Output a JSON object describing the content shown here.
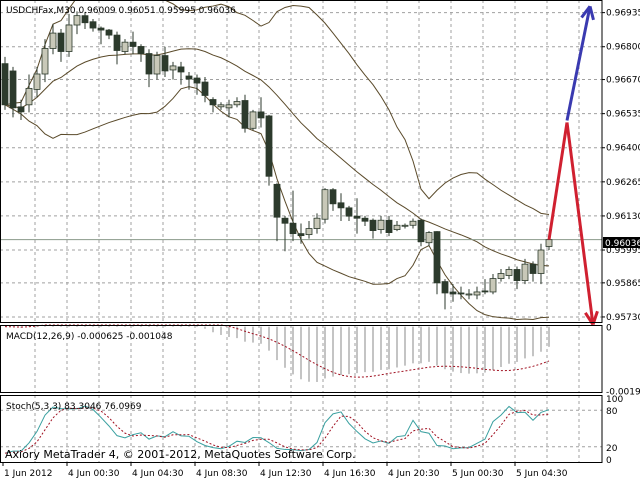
{
  "chart_data": {
    "type": "candlestick",
    "title": "USDCHFax,M30",
    "ohlc_label": "0.96009 0.96051 0.95995 0.96036",
    "current_price": "0.96036",
    "price_ticks": [
      "0.96935",
      "0.96800",
      "0.96670",
      "0.96535",
      "0.96400",
      "0.96265",
      "0.96130",
      "0.95995",
      "0.95865",
      "0.95730"
    ],
    "ylim": [
      0.9571,
      0.96985
    ],
    "time_ticks": [
      "1 Jun 2012",
      "4 Jun 00:30",
      "4 Jun 04:30",
      "4 Jun 08:30",
      "4 Jun 12:30",
      "4 Jun 16:30",
      "4 Jun 20:30",
      "5 Jun 00:30",
      "5 Jun 04:30"
    ],
    "grid": true,
    "colors": {
      "bull": "#c8c8b8",
      "bear": "#2c3a2c",
      "bands": "#5a4a2a",
      "up_arrow": "#3a3ab0",
      "down_arrow": "#d02030",
      "macd_hist": "#b0b0b0",
      "signal": "#a01020",
      "stoch_main": "#3aa0a0",
      "stoch_signal": "#a01020"
    },
    "candles": [
      [
        0.96733,
        0.9676,
        0.9655,
        0.9657
      ],
      [
        0.96704,
        0.9672,
        0.9652,
        0.96558
      ],
      [
        0.96562,
        0.9659,
        0.9651,
        0.96542
      ],
      [
        0.9657,
        0.9669,
        0.9654,
        0.96635
      ],
      [
        0.96631,
        0.9672,
        0.966,
        0.96692
      ],
      [
        0.96692,
        0.9683,
        0.9666,
        0.96793
      ],
      [
        0.96793,
        0.9689,
        0.9677,
        0.96854
      ],
      [
        0.96854,
        0.9687,
        0.9674,
        0.96781
      ],
      [
        0.96781,
        0.9693,
        0.9676,
        0.96886
      ],
      [
        0.96886,
        0.9694,
        0.9685,
        0.96923
      ],
      [
        0.96923,
        0.96935,
        0.9687,
        0.96895
      ],
      [
        0.96899,
        0.9691,
        0.9686,
        0.96874
      ],
      [
        0.96874,
        0.9688,
        0.9681,
        0.96866
      ],
      [
        0.96866,
        0.9687,
        0.9683,
        0.96846
      ],
      [
        0.96846,
        0.9686,
        0.9673,
        0.96785
      ],
      [
        0.96781,
        0.9683,
        0.9677,
        0.96818
      ],
      [
        0.96818,
        0.9686,
        0.9677,
        0.96801
      ],
      [
        0.96801,
        0.9681,
        0.9674,
        0.96773
      ],
      [
        0.96773,
        0.9679,
        0.9664,
        0.96692
      ],
      [
        0.96692,
        0.9678,
        0.9667,
        0.96765
      ],
      [
        0.96765,
        0.968,
        0.9668,
        0.96704
      ],
      [
        0.96708,
        0.9674,
        0.9667,
        0.96724
      ],
      [
        0.9672,
        0.9674,
        0.9665,
        0.967
      ],
      [
        0.96684,
        0.967,
        0.9663,
        0.96672
      ],
      [
        0.96676,
        0.9669,
        0.9661,
        0.96656
      ],
      [
        0.9666,
        0.9668,
        0.9658,
        0.96607
      ],
      [
        0.96591,
        0.966,
        0.9654,
        0.9657
      ],
      [
        0.96562,
        0.9658,
        0.9655,
        0.9657
      ],
      [
        0.96558,
        0.9659,
        0.9652,
        0.9657
      ],
      [
        0.9657,
        0.966,
        0.9656,
        0.96583
      ],
      [
        0.96587,
        0.9661,
        0.9646,
        0.96477
      ],
      [
        0.96477,
        0.9655,
        0.9647,
        0.96542
      ],
      [
        0.96542,
        0.966,
        0.9648,
        0.96518
      ],
      [
        0.96526,
        0.9653,
        0.9625,
        0.96287
      ],
      [
        0.96255,
        0.9626,
        0.9603,
        0.96125
      ],
      [
        0.96121,
        0.9613,
        0.9599,
        0.96101
      ],
      [
        0.96101,
        0.9623,
        0.9603,
        0.9606
      ],
      [
        0.9606,
        0.961,
        0.9602,
        0.96052
      ],
      [
        0.96056,
        0.9611,
        0.9604,
        0.9608
      ],
      [
        0.9608,
        0.9614,
        0.9606,
        0.96121
      ],
      [
        0.96117,
        0.9624,
        0.961,
        0.96234
      ],
      [
        0.96234,
        0.9624,
        0.9615,
        0.96178
      ],
      [
        0.96182,
        0.9622,
        0.9611,
        0.96162
      ],
      [
        0.96162,
        0.9617,
        0.9611,
        0.96129
      ],
      [
        0.96129,
        0.962,
        0.9606,
        0.96121
      ],
      [
        0.96121,
        0.9613,
        0.9609,
        0.96109
      ],
      [
        0.96113,
        0.9612,
        0.9604,
        0.96072
      ],
      [
        0.96076,
        0.9613,
        0.9606,
        0.96113
      ],
      [
        0.96113,
        0.9613,
        0.9605,
        0.96064
      ],
      [
        0.96076,
        0.9611,
        0.9607,
        0.96093
      ],
      [
        0.96089,
        0.961,
        0.9608,
        0.96093
      ],
      [
        0.96093,
        0.9612,
        0.9608,
        0.96109
      ],
      [
        0.96113,
        0.9612,
        0.9601,
        0.96028
      ],
      [
        0.96024,
        0.9607,
        0.9601,
        0.96064
      ],
      [
        0.96068,
        0.9607,
        0.9582,
        0.95865
      ],
      [
        0.9587,
        0.9588,
        0.9576,
        0.95825
      ],
      [
        0.95829,
        0.9586,
        0.9579,
        0.95821
      ],
      [
        0.95825,
        0.9585,
        0.958,
        0.95821
      ],
      [
        0.95817,
        0.9584,
        0.958,
        0.95821
      ],
      [
        0.95817,
        0.9585,
        0.958,
        0.95829
      ],
      [
        0.95833,
        0.9588,
        0.9582,
        0.95829
      ],
      [
        0.95829,
        0.959,
        0.9582,
        0.95882
      ],
      [
        0.95882,
        0.9592,
        0.9587,
        0.95902
      ],
      [
        0.95894,
        0.9593,
        0.9588,
        0.95918
      ],
      [
        0.95918,
        0.9593,
        0.9584,
        0.95874
      ],
      [
        0.95874,
        0.9596,
        0.9586,
        0.95939
      ],
      [
        0.95939,
        0.9595,
        0.9587,
        0.95902
      ],
      [
        0.95902,
        0.9602,
        0.9586,
        0.95995
      ],
      [
        0.96009,
        0.96051,
        0.95995,
        0.96036
      ]
    ],
    "bollinger": {
      "period": 20,
      "deviation": 2
    },
    "forecast_arrows": {
      "red_peak": 0.965,
      "red_down_end": 0.957,
      "blue_up_end": 0.9696
    },
    "macd": {
      "label": "MACD(12,26,9) -0.000625 -0.001048",
      "ticks": [
        "0",
        "-0.00190"
      ],
      "ylim": [
        -0.00195,
        5e-05
      ]
    },
    "stoch": {
      "label": "Stoch(5,3,3) 83.3046 76.0969",
      "ticks": [
        "100",
        "80",
        "20",
        "0"
      ],
      "levels": [
        80,
        20
      ],
      "ylim": [
        0,
        100
      ]
    }
  },
  "watermark": "Axiory MetaTrader 4, © 2001-2012, MetaQuotes Software Corp."
}
